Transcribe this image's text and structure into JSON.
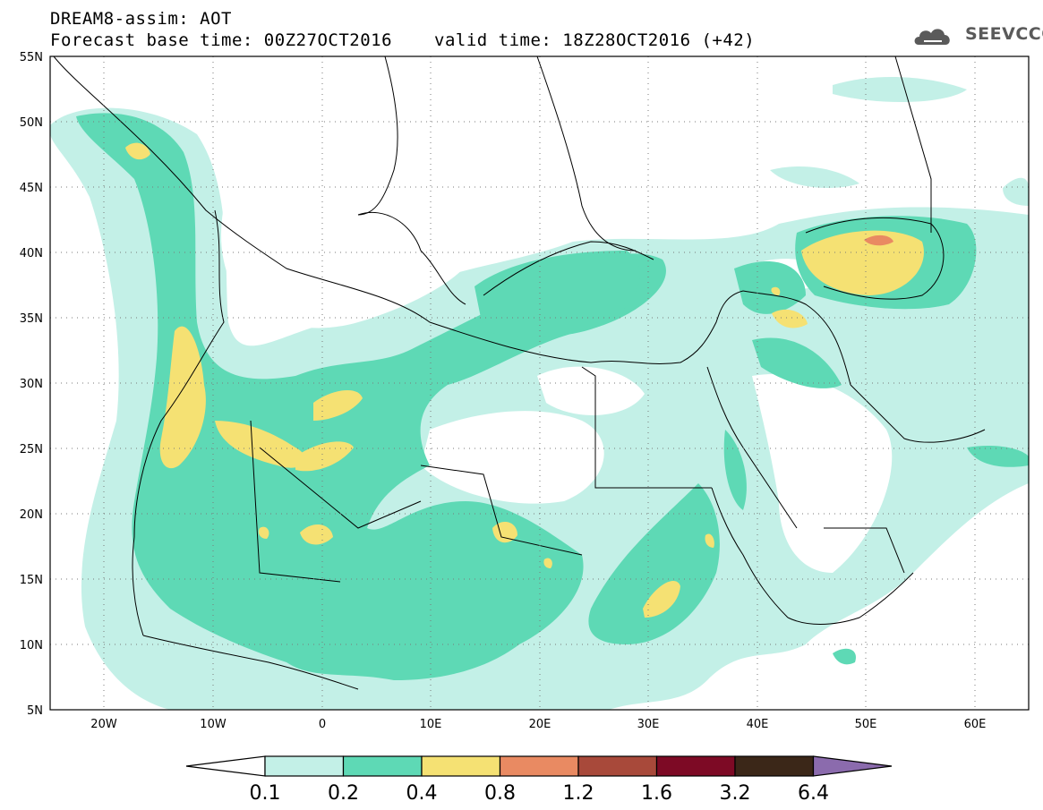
{
  "header": {
    "title": "DREAM8-assim: AOT",
    "base_time": "Forecast base time: 00Z27OCT2016",
    "valid_time": "valid time: 18Z28OCT2016 (+42)"
  },
  "logo": {
    "text": "SEEVCCC",
    "icon": "cloud-icon"
  },
  "map": {
    "projection": "equirectangular",
    "lon_range": [
      -25,
      65
    ],
    "lat_range": [
      5,
      55
    ],
    "grid": "dotted",
    "lat_labels": [
      "55N",
      "50N",
      "45N",
      "40N",
      "35N",
      "30N",
      "25N",
      "20N",
      "15N",
      "10N",
      "5N"
    ],
    "lon_labels": [
      "20W",
      "10W",
      "0",
      "10E",
      "20E",
      "30E",
      "40E",
      "50E",
      "60E"
    ]
  },
  "colorbar": {
    "labels": [
      "0.1",
      "0.2",
      "0.4",
      "0.8",
      "1.2",
      "1.6",
      "3.2",
      "6.4"
    ],
    "colors": [
      "#c3f0e7",
      "#5ed9b5",
      "#f5e173",
      "#e98a62",
      "#a8493a",
      "#7d0a25",
      "#3b2718",
      "#8b6bad"
    ]
  }
}
